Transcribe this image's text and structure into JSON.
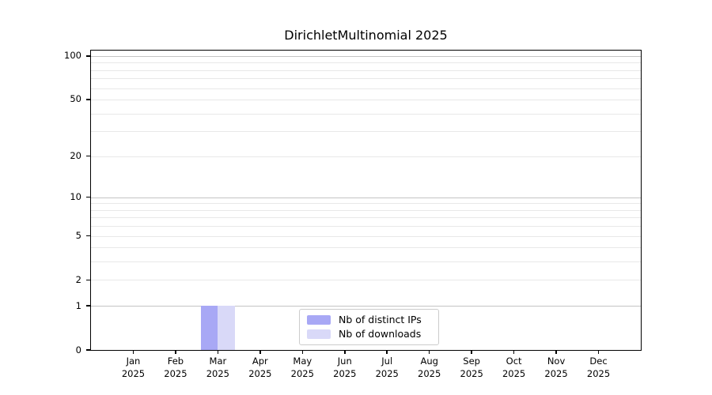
{
  "chart_data": {
    "type": "bar",
    "title": "DirichletMultinomial 2025",
    "year_label": "2025",
    "categories": [
      "Jan",
      "Feb",
      "Mar",
      "Apr",
      "May",
      "Jun",
      "Jul",
      "Aug",
      "Sep",
      "Oct",
      "Nov",
      "Dec"
    ],
    "series": [
      {
        "name": "Nb of distinct IPs",
        "color": "#a8a8f5",
        "values": [
          0,
          0,
          1,
          0,
          0,
          0,
          0,
          0,
          0,
          0,
          0,
          0
        ]
      },
      {
        "name": "Nb of downloads",
        "color": "#d9d9f8",
        "values": [
          0,
          0,
          1,
          0,
          0,
          0,
          0,
          0,
          0,
          0,
          0,
          0
        ]
      }
    ],
    "yscale": "log1p",
    "ylim": [
      0,
      109
    ],
    "yticks": [
      0,
      1,
      2,
      5,
      10,
      20,
      50,
      100
    ],
    "gridlines_major": [
      1,
      10,
      100
    ],
    "gridlines_minor": [
      2,
      3,
      4,
      5,
      6,
      7,
      8,
      9,
      20,
      30,
      40,
      50,
      60,
      70,
      80,
      90
    ],
    "legend": {
      "entries": [
        "Nb of distinct IPs",
        "Nb of downloads"
      ],
      "position": "lower center"
    },
    "grid": true,
    "colors": {
      "grid_major": "#c4c4c4",
      "grid_minor": "#e8e8e8",
      "spine": "#000000",
      "text": "#000000",
      "legend_border": "#cccccc"
    }
  }
}
